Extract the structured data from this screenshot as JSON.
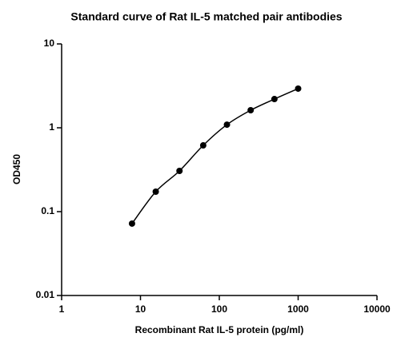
{
  "chart_data": {
    "type": "scatter",
    "title": "Standard curve of Rat IL-5 matched pair antibodies",
    "xlabel": "Recombinant Rat IL-5 protein (pg/ml)",
    "ylabel": "OD450",
    "x": [
      7.8125,
      15.625,
      31.25,
      62.5,
      125,
      250,
      500,
      1000
    ],
    "values": [
      0.072,
      0.173,
      0.306,
      0.617,
      1.09,
      1.62,
      2.2,
      2.93
    ],
    "color": "#000000",
    "xscale": "log",
    "yscale": "log",
    "xlim": [
      1,
      10000
    ],
    "xticks": [
      1,
      10,
      100,
      1000,
      10000
    ],
    "ylim": [
      0.01,
      10
    ],
    "yticks": [
      0.01,
      0.1,
      1,
      10
    ],
    "curve": true
  }
}
